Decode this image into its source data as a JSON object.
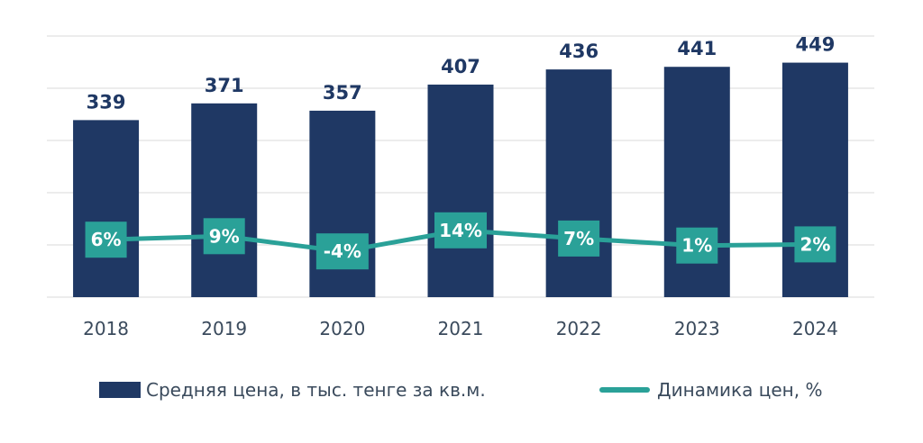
{
  "colors": {
    "bar": "#1f3864",
    "line": "#2aa198",
    "grid": "#d9d9d9",
    "tick": "#3a4a5c"
  },
  "legend": {
    "bar_label": "Средняя цена, в тыс. тенге за кв.м.",
    "line_label": "Динамика цен, %"
  },
  "chart_data": {
    "type": "bar",
    "categories": [
      "2018",
      "2019",
      "2020",
      "2021",
      "2022",
      "2023",
      "2024"
    ],
    "series": [
      {
        "name": "Средняя цена, в тыс. тенге за кв.м.",
        "type": "bar",
        "values": [
          339,
          371,
          357,
          407,
          436,
          441,
          449
        ]
      },
      {
        "name": "Динамика цен, %",
        "type": "line",
        "values": [
          6,
          9,
          -4,
          14,
          7,
          1,
          2
        ]
      }
    ],
    "bar_labels": [
      "339",
      "371",
      "357",
      "407",
      "436",
      "441",
      "449"
    ],
    "line_labels": [
      "6%",
      "9%",
      "-4%",
      "14%",
      "7%",
      "1%",
      "2%"
    ],
    "title": "",
    "xlabel": "",
    "ylabel": "",
    "ylim": [
      0,
      500
    ],
    "grid": true,
    "legend_position": "bottom"
  }
}
